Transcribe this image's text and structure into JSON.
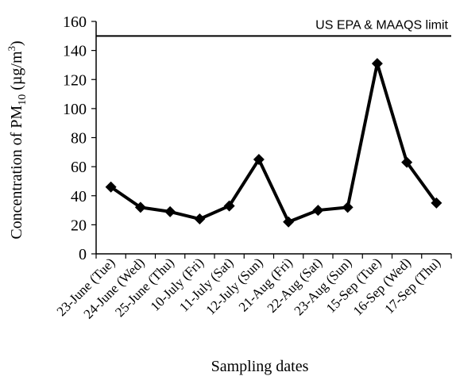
{
  "chart_data": {
    "type": "line",
    "title": "",
    "xlabel": "Sampling dates",
    "ylabel_parts": {
      "prefix": "Concentration of PM",
      "subscript": "10",
      "unit_open": " (µg/m",
      "superscript": "3",
      "unit_close": ")"
    },
    "ylim": [
      0,
      160
    ],
    "yticks": [
      0,
      20,
      40,
      60,
      80,
      100,
      120,
      140,
      160
    ],
    "categories": [
      "23-June (Tue)",
      "24-June (Wed)",
      "25-June (Thu)",
      "10-July (Fri)",
      "11-July (Sat)",
      "12-July (Sun)",
      "21-Aug (Fri)",
      "22-Aug (Sat)",
      "23-Aug (Sun)",
      "15-Sep (Tue)",
      "16-Sep (Wed)",
      "17-Sep (Thu)"
    ],
    "series": [
      {
        "values": [
          46,
          32,
          29,
          24,
          33,
          65,
          22,
          30,
          32,
          131,
          63,
          35
        ],
        "color": "#000000",
        "marker": "diamond"
      }
    ],
    "reference_line": {
      "value": 150,
      "label": "US EPA & MAAQS limit",
      "color": "#000000"
    },
    "grid": false,
    "legend": "none"
  }
}
